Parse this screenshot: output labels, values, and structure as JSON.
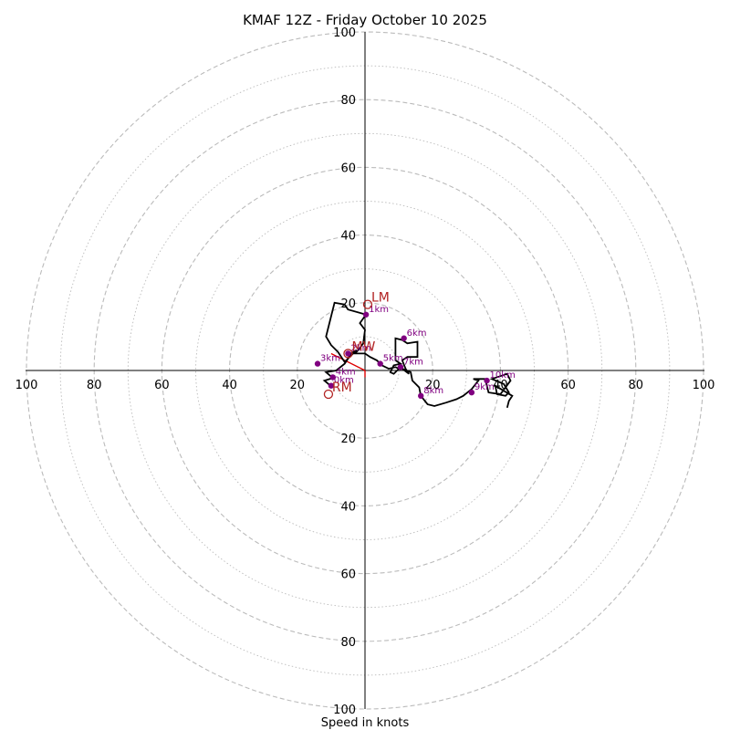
{
  "chart_data": {
    "type": "hodograph",
    "title": "KMAF 12Z - Friday October 10 2025",
    "xlabel": "Speed in knots",
    "range": [
      -100,
      100
    ],
    "ring_labels": [
      "100",
      "80",
      "60",
      "40",
      "20",
      "20",
      "40",
      "60",
      "80",
      "100"
    ],
    "x_tick_labels": [
      "100",
      "80",
      "60",
      "40",
      "20",
      "20",
      "40",
      "60",
      "80",
      "100"
    ],
    "y_tick_labels": [
      "100",
      "80",
      "60",
      "40",
      "20",
      "20",
      "40",
      "60",
      "80",
      "100"
    ],
    "hodograph_trace": [
      [
        -10.2,
        -4.5
      ],
      [
        -12.0,
        -3.0
      ],
      [
        -9.5,
        -2.2
      ],
      [
        -11.5,
        -0.5
      ],
      [
        -8.5,
        0.0
      ],
      [
        -6.0,
        2.0
      ],
      [
        -5.0,
        3.5
      ],
      [
        -4.2,
        5.0
      ],
      [
        -2.5,
        6.0
      ],
      [
        -6.0,
        2.5
      ],
      [
        -8.0,
        5.5
      ],
      [
        -10.0,
        7.5
      ],
      [
        -11.5,
        10.0
      ],
      [
        -10.5,
        14.0
      ],
      [
        -9.0,
        20.0
      ],
      [
        -6.0,
        19.5
      ],
      [
        -5.0,
        18.0
      ],
      [
        0.3,
        16.5
      ],
      [
        -1.5,
        14.0
      ],
      [
        0.0,
        12.0
      ],
      [
        -0.5,
        8.0
      ],
      [
        -2.0,
        6.0
      ],
      [
        -3.0,
        5.0
      ],
      [
        0.0,
        5.0
      ],
      [
        1.5,
        4.0
      ],
      [
        3.5,
        3.0
      ],
      [
        4.5,
        2.0
      ],
      [
        5.0,
        1.5
      ],
      [
        7.0,
        0.5
      ],
      [
        9.0,
        1.0
      ],
      [
        10.0,
        0.5
      ],
      [
        8.5,
        -1.0
      ],
      [
        7.5,
        -0.5
      ],
      [
        8.5,
        1.5
      ],
      [
        10.5,
        2.0
      ],
      [
        9.0,
        3.0
      ],
      [
        9.0,
        9.5
      ],
      [
        11.0,
        9.0
      ],
      [
        12.5,
        8.0
      ],
      [
        15.5,
        8.5
      ],
      [
        15.5,
        4.0
      ],
      [
        12.5,
        4.0
      ],
      [
        11.0,
        3.0
      ],
      [
        12.0,
        0.5
      ],
      [
        13.0,
        -1.0
      ],
      [
        11.0,
        0.5
      ],
      [
        13.5,
        -0.5
      ],
      [
        14.0,
        -3.0
      ],
      [
        16.0,
        -5.0
      ],
      [
        16.5,
        -7.5
      ],
      [
        18.5,
        -10.0
      ],
      [
        20.5,
        -10.5
      ],
      [
        24.0,
        -9.5
      ],
      [
        27.0,
        -8.5
      ],
      [
        29.0,
        -7.5
      ],
      [
        31.5,
        -5.5
      ],
      [
        33.5,
        -3.0
      ],
      [
        32.0,
        -2.5
      ],
      [
        35.5,
        -2.5
      ],
      [
        36.5,
        -6.5
      ],
      [
        40.0,
        -7.0
      ],
      [
        43.0,
        -3.0
      ],
      [
        42.0,
        -1.0
      ],
      [
        37.5,
        -2.5
      ],
      [
        41.0,
        -4.0
      ],
      [
        42.5,
        -6.5
      ],
      [
        41.5,
        -7.5
      ],
      [
        39.0,
        -7.0
      ],
      [
        38.5,
        -4.5
      ],
      [
        43.5,
        -7.5
      ],
      [
        42.5,
        -9.0
      ],
      [
        42.0,
        -11.0
      ]
    ],
    "height_markers": [
      {
        "label": "0km",
        "u": -10.0,
        "v": -4.5
      },
      {
        "label": "1km",
        "u": 0.3,
        "v": 16.5
      },
      {
        "label": "2km",
        "u": -5.0,
        "v": 5.0
      },
      {
        "label": "3km",
        "u": -14.0,
        "v": 2.0
      },
      {
        "label": "4km",
        "u": -9.5,
        "v": -2.0
      },
      {
        "label": "5km",
        "u": 4.5,
        "v": 2.0
      },
      {
        "label": "6km",
        "u": 11.5,
        "v": 9.5
      },
      {
        "label": "7km",
        "u": 10.5,
        "v": 1.0
      },
      {
        "label": "8km",
        "u": 16.5,
        "v": -7.5
      },
      {
        "label": "9km",
        "u": 31.5,
        "v": -6.5
      },
      {
        "label": "10km",
        "u": 36.0,
        "v": -3.0
      }
    ],
    "motion_markers": [
      {
        "label": "LM",
        "u": 0.8,
        "v": 19.5
      },
      {
        "label": "MW",
        "u": -5.0,
        "v": 5.0
      },
      {
        "label": "RM",
        "u": -10.8,
        "v": -7.0
      }
    ],
    "shear_vector": {
      "from": [
        0.0,
        0.0
      ],
      "to": [
        -10.0,
        5.0
      ],
      "end": [
        0.0,
        -2.0
      ]
    },
    "colors": {
      "trace": "#000000",
      "height_marker": "#800080",
      "motion_label": "#b22222",
      "shear": "#dd0000",
      "rings": "#bbbbbb"
    }
  }
}
